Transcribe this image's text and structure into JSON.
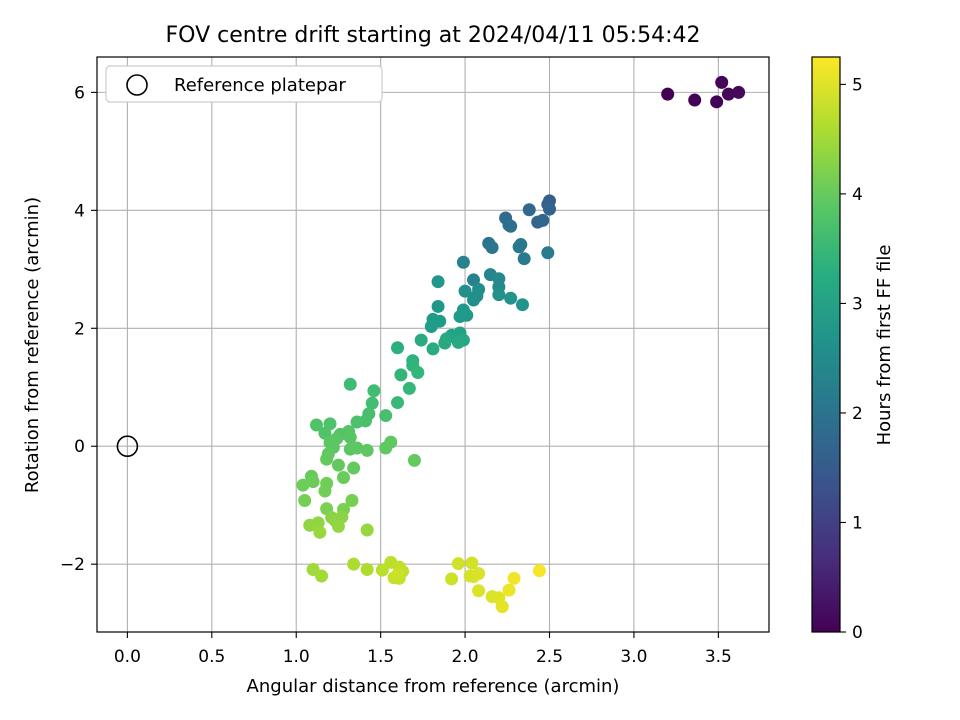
{
  "chart_data": {
    "type": "scatter",
    "title": "FOV centre drift starting at 2024/04/11 05:54:42",
    "xlabel": "Angular distance from reference (arcmin)",
    "ylabel": "Rotation from reference (arcmin)",
    "xlim": [
      -0.18,
      3.8
    ],
    "ylim": [
      -3.15,
      6.6
    ],
    "x_ticks": [
      0.0,
      0.5,
      1.0,
      1.5,
      2.0,
      2.5,
      3.0,
      3.5
    ],
    "x_tick_labels": [
      "0.0",
      "0.5",
      "1.0",
      "1.5",
      "2.0",
      "2.5",
      "3.0",
      "3.5"
    ],
    "y_ticks": [
      -2,
      0,
      2,
      4,
      6
    ],
    "y_tick_labels": [
      "−2",
      "0",
      "2",
      "4",
      "6"
    ],
    "grid": true,
    "legend": {
      "placement": "top-left",
      "entries": [
        "Reference platepar"
      ]
    },
    "reference_point": {
      "x": 0,
      "y": 0
    },
    "colorbar": {
      "label": "Hours from first FF file",
      "range": [
        0,
        5.25
      ],
      "ticks": [
        0,
        1,
        2,
        3,
        4,
        5
      ],
      "tick_labels": [
        "0",
        "1",
        "2",
        "3",
        "4",
        "5"
      ],
      "colormap": "viridis"
    },
    "points": [
      [
        3.2,
        5.97,
        0.0
      ],
      [
        3.36,
        5.87,
        0.02
      ],
      [
        3.49,
        5.84,
        0.04
      ],
      [
        3.52,
        6.17,
        0.06
      ],
      [
        3.56,
        5.97,
        0.08
      ],
      [
        3.62,
        6.0,
        0.1
      ],
      [
        2.5,
        4.16,
        1.55
      ],
      [
        2.49,
        4.1,
        1.6
      ],
      [
        2.5,
        4.02,
        1.65
      ],
      [
        2.46,
        3.83,
        1.7
      ],
      [
        2.43,
        3.8,
        1.72
      ],
      [
        2.38,
        4.01,
        1.78
      ],
      [
        2.24,
        3.87,
        1.8
      ],
      [
        2.26,
        3.75,
        1.85
      ],
      [
        2.27,
        3.73,
        1.9
      ],
      [
        2.14,
        3.44,
        2.0
      ],
      [
        2.16,
        3.37,
        2.05
      ],
      [
        2.32,
        3.38,
        2.1
      ],
      [
        2.33,
        3.42,
        2.12
      ],
      [
        2.35,
        3.18,
        2.15
      ],
      [
        2.49,
        3.28,
        2.2
      ],
      [
        1.99,
        3.12,
        2.3
      ],
      [
        2.05,
        2.82,
        2.35
      ],
      [
        2.15,
        2.91,
        2.4
      ],
      [
        2.2,
        2.84,
        2.45
      ],
      [
        2.2,
        2.7,
        2.5
      ],
      [
        2.08,
        2.66,
        2.55
      ],
      [
        2.07,
        2.55,
        2.58
      ],
      [
        2.05,
        2.48,
        2.6
      ],
      [
        2.0,
        2.63,
        2.62
      ],
      [
        2.2,
        2.57,
        2.65
      ],
      [
        2.27,
        2.51,
        2.7
      ],
      [
        2.34,
        2.4,
        2.72
      ],
      [
        1.84,
        2.79,
        2.75
      ],
      [
        1.84,
        2.37,
        2.78
      ],
      [
        1.99,
        2.31,
        2.8
      ],
      [
        2.01,
        2.22,
        2.82
      ],
      [
        1.97,
        2.2,
        2.84
      ],
      [
        1.81,
        2.15,
        2.86
      ],
      [
        1.85,
        2.12,
        2.88
      ],
      [
        1.8,
        2.03,
        2.9
      ],
      [
        1.97,
        1.92,
        3.0
      ],
      [
        1.92,
        1.88,
        3.05
      ],
      [
        1.89,
        1.82,
        3.1
      ],
      [
        1.99,
        1.8,
        3.12
      ],
      [
        1.96,
        1.76,
        3.15
      ],
      [
        1.88,
        1.75,
        3.18
      ],
      [
        1.74,
        1.8,
        3.2
      ],
      [
        1.81,
        1.65,
        3.22
      ],
      [
        1.6,
        1.67,
        3.3
      ],
      [
        1.69,
        1.45,
        3.35
      ],
      [
        1.69,
        1.37,
        3.4
      ],
      [
        1.62,
        1.21,
        3.45
      ],
      [
        1.72,
        1.25,
        3.48
      ],
      [
        1.67,
        0.98,
        3.5
      ],
      [
        1.6,
        0.74,
        3.55
      ],
      [
        1.32,
        1.05,
        3.6
      ],
      [
        1.46,
        0.94,
        3.62
      ],
      [
        1.45,
        0.73,
        3.65
      ],
      [
        1.43,
        0.55,
        3.68
      ],
      [
        1.53,
        0.52,
        3.7
      ],
      [
        1.41,
        0.43,
        3.72
      ],
      [
        1.36,
        0.41,
        3.74
      ],
      [
        1.2,
        0.38,
        3.76
      ],
      [
        1.12,
        0.36,
        3.78
      ],
      [
        1.17,
        0.22,
        3.8
      ],
      [
        1.26,
        0.2,
        3.82
      ],
      [
        1.31,
        0.25,
        3.84
      ],
      [
        1.32,
        0.15,
        3.86
      ],
      [
        1.24,
        0.13,
        3.88
      ],
      [
        1.2,
        0.06,
        3.89
      ],
      [
        1.22,
        -0.02,
        3.9
      ],
      [
        1.32,
        -0.05,
        3.91
      ],
      [
        1.36,
        -0.03,
        3.92
      ],
      [
        1.42,
        -0.07,
        3.93
      ],
      [
        1.53,
        -0.03,
        3.94
      ],
      [
        1.56,
        0.07,
        3.95
      ],
      [
        1.19,
        -0.13,
        3.96
      ],
      [
        1.18,
        -0.22,
        3.97
      ],
      [
        1.25,
        -0.32,
        3.98
      ],
      [
        1.34,
        -0.37,
        3.99
      ],
      [
        1.7,
        -0.24,
        4.0
      ],
      [
        1.09,
        -0.51,
        4.02
      ],
      [
        1.28,
        -0.53,
        4.04
      ],
      [
        1.1,
        -0.6,
        4.06
      ],
      [
        1.04,
        -0.66,
        4.08
      ],
      [
        1.18,
        -0.63,
        4.1
      ],
      [
        1.17,
        -0.76,
        4.12
      ],
      [
        1.05,
        -0.92,
        4.14
      ],
      [
        1.33,
        -0.92,
        4.16
      ],
      [
        1.18,
        -1.06,
        4.18
      ],
      [
        1.28,
        -1.07,
        4.2
      ],
      [
        1.21,
        -1.21,
        4.3
      ],
      [
        1.27,
        -1.2,
        4.32
      ],
      [
        1.23,
        -1.26,
        4.34
      ],
      [
        1.13,
        -1.3,
        4.36
      ],
      [
        1.08,
        -1.34,
        4.38
      ],
      [
        1.25,
        -1.36,
        4.4
      ],
      [
        1.42,
        -1.42,
        4.42
      ],
      [
        1.14,
        -1.46,
        4.44
      ],
      [
        1.1,
        -2.09,
        4.5
      ],
      [
        1.15,
        -2.2,
        4.52
      ],
      [
        1.34,
        -2.0,
        4.6
      ],
      [
        1.42,
        -2.09,
        4.62
      ],
      [
        1.51,
        -2.1,
        4.7
      ],
      [
        1.56,
        -1.97,
        4.72
      ],
      [
        1.61,
        -2.05,
        4.75
      ],
      [
        1.63,
        -2.12,
        4.78
      ],
      [
        1.58,
        -2.23,
        4.8
      ],
      [
        1.61,
        -2.24,
        4.82
      ],
      [
        1.6,
        -2.18,
        4.84
      ],
      [
        1.92,
        -2.25,
        4.86
      ],
      [
        1.96,
        -1.99,
        4.88
      ],
      [
        2.04,
        -1.98,
        4.9
      ],
      [
        2.03,
        -2.2,
        4.92
      ],
      [
        2.05,
        -2.21,
        4.94
      ],
      [
        2.08,
        -2.16,
        4.95
      ],
      [
        2.08,
        -2.45,
        4.97
      ],
      [
        2.16,
        -2.55,
        4.99
      ],
      [
        2.2,
        -2.57,
        5.0
      ],
      [
        2.22,
        -2.72,
        5.05
      ],
      [
        2.26,
        -2.44,
        5.1
      ],
      [
        2.29,
        -2.24,
        5.15
      ],
      [
        2.44,
        -2.11,
        5.2
      ]
    ]
  }
}
